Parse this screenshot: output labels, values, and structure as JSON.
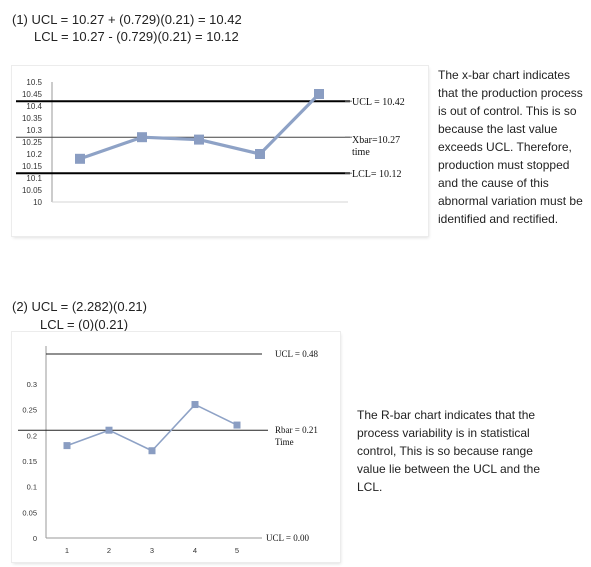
{
  "section1": {
    "eq_line1": "(1) UCL = 10.27 + (0.729)(0.21) = 10.42",
    "eq_line2": "LCL = 10.27 - (0.729)(0.21) = 10.12",
    "note": "The x-bar chart indicates that the production process is out of control. This is so because the last value exceeds UCL. Therefore, production must stopped and the cause of this abnormal variation must be identified and rectified."
  },
  "section2": {
    "eq_line1": "(2) UCL = (2.282)(0.21)",
    "eq_line2": "LCL = (0)(0.21)",
    "note": "The R-bar chart indicates that the process variability is in statistical control, This is so because range value lie between the UCL and the LCL."
  },
  "colors": {
    "series": "#8ea2c6",
    "marker": "#8a9dc2",
    "control_line": "#000000",
    "center_line": "#444444",
    "axis": "#9a9a9a"
  },
  "chart_data": [
    {
      "type": "line",
      "title": "",
      "ytick_labels": [
        "10.5",
        "10.45",
        "10.4",
        "10.35",
        "10.3",
        "10.25",
        "10.2",
        "10.15",
        "10.1",
        "10.05",
        "10"
      ],
      "ylim": [
        10,
        10.5
      ],
      "grid": false,
      "series": [
        {
          "values": [
            10.18,
            10.27,
            10.26,
            10.2,
            10.45
          ]
        }
      ],
      "reference_lines": [
        {
          "label": "UCL = 10.42",
          "value": 10.42
        },
        {
          "label": "Xbar=10.27",
          "sublabel": "time",
          "value": 10.27
        },
        {
          "label": "LCL= 10.12",
          "value": 10.12
        }
      ]
    },
    {
      "type": "line",
      "title": "",
      "categories": [
        "1",
        "2",
        "3",
        "4",
        "5"
      ],
      "ytick_labels": [
        "0.3",
        "0.25",
        "0.2",
        "0.15",
        "0.1",
        "0.05",
        "0"
      ],
      "ylim": [
        0,
        0.3
      ],
      "grid": false,
      "series": [
        {
          "values": [
            0.18,
            0.21,
            0.17,
            0.26,
            0.22
          ]
        }
      ],
      "reference_lines": [
        {
          "label": "UCL = 0.48",
          "value": 0.48
        },
        {
          "label": "Rbar = 0.21",
          "sublabel": "Time",
          "value": 0.21
        },
        {
          "label": "UCL = 0.00",
          "value": 0.0
        }
      ]
    }
  ]
}
